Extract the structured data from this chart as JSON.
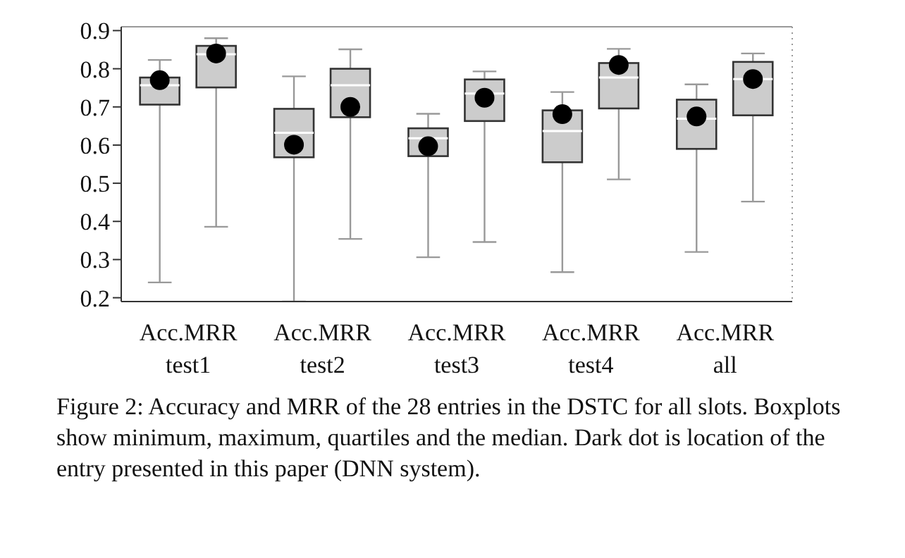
{
  "chart_data": {
    "type": "box",
    "categories": [
      "Acc.MRR\ntest1",
      "Acc.MRR\ntest2",
      "Acc.MRR\ntest3",
      "Acc.MRR\ntest4",
      "Acc.MRR\nall"
    ],
    "series": [
      {
        "color": "#cccccc",
        "boxes": [
          {
            "low": 0.24,
            "q1": 0.706,
            "median": 0.757,
            "q3": 0.777,
            "high": 0.823
          },
          {
            "low": 0.19,
            "q1": 0.568,
            "median": 0.632,
            "q3": 0.695,
            "high": 0.78
          },
          {
            "low": 0.306,
            "q1": 0.571,
            "median": 0.618,
            "q3": 0.644,
            "high": 0.682
          },
          {
            "low": 0.267,
            "q1": 0.555,
            "median": 0.637,
            "q3": 0.691,
            "high": 0.739
          },
          {
            "low": 0.32,
            "q1": 0.59,
            "median": 0.669,
            "q3": 0.719,
            "high": 0.759
          }
        ]
      },
      {
        "color": "#cccccc",
        "boxes": [
          {
            "low": 0.386,
            "q1": 0.751,
            "median": 0.838,
            "q3": 0.86,
            "high": 0.88
          },
          {
            "low": 0.354,
            "q1": 0.673,
            "median": 0.757,
            "q3": 0.8,
            "high": 0.851
          },
          {
            "low": 0.346,
            "q1": 0.663,
            "median": 0.735,
            "q3": 0.772,
            "high": 0.793
          },
          {
            "low": 0.51,
            "q1": 0.696,
            "median": 0.777,
            "q3": 0.815,
            "high": 0.852
          },
          {
            "low": 0.452,
            "q1": 0.678,
            "median": 0.773,
            "q3": 0.818,
            "high": 0.84
          }
        ]
      },
      {
        "type": "scatter",
        "color": "#000000",
        "x": [
          "Acc.MRR\ntest1",
          "Acc.MRR\ntest2",
          "Acc.MRR\ntest3",
          "Acc.MRR\ntest4",
          "Acc.MRR\nall"
        ],
        "values": [
          0.77,
          0.601,
          0.597,
          0.681,
          0.675
        ]
      },
      {
        "type": "scatter",
        "color": "#000000",
        "x": [
          "Acc.MRR\ntest1",
          "Acc.MRR\ntest2",
          "Acc.MRR\ntest3",
          "Acc.MRR\ntest4",
          "Acc.MRR\nall"
        ],
        "values": [
          0.84,
          0.7,
          0.724,
          0.81,
          0.773
        ]
      }
    ],
    "ylim": [
      0.19,
      0.91
    ],
    "yticks": [
      0.2,
      0.3,
      0.4,
      0.5,
      0.6,
      0.7,
      0.8,
      0.9
    ],
    "grid": false,
    "legend": false,
    "marker": "circle",
    "annotations": [
      "Figure 2: Accuracy and MRR of the 28 entries in the DSTC for all slots. Boxplots show minimum, maximum, quartiles and the median. Dark dot is location of the entry presented in this paper (DNN system)."
    ]
  }
}
